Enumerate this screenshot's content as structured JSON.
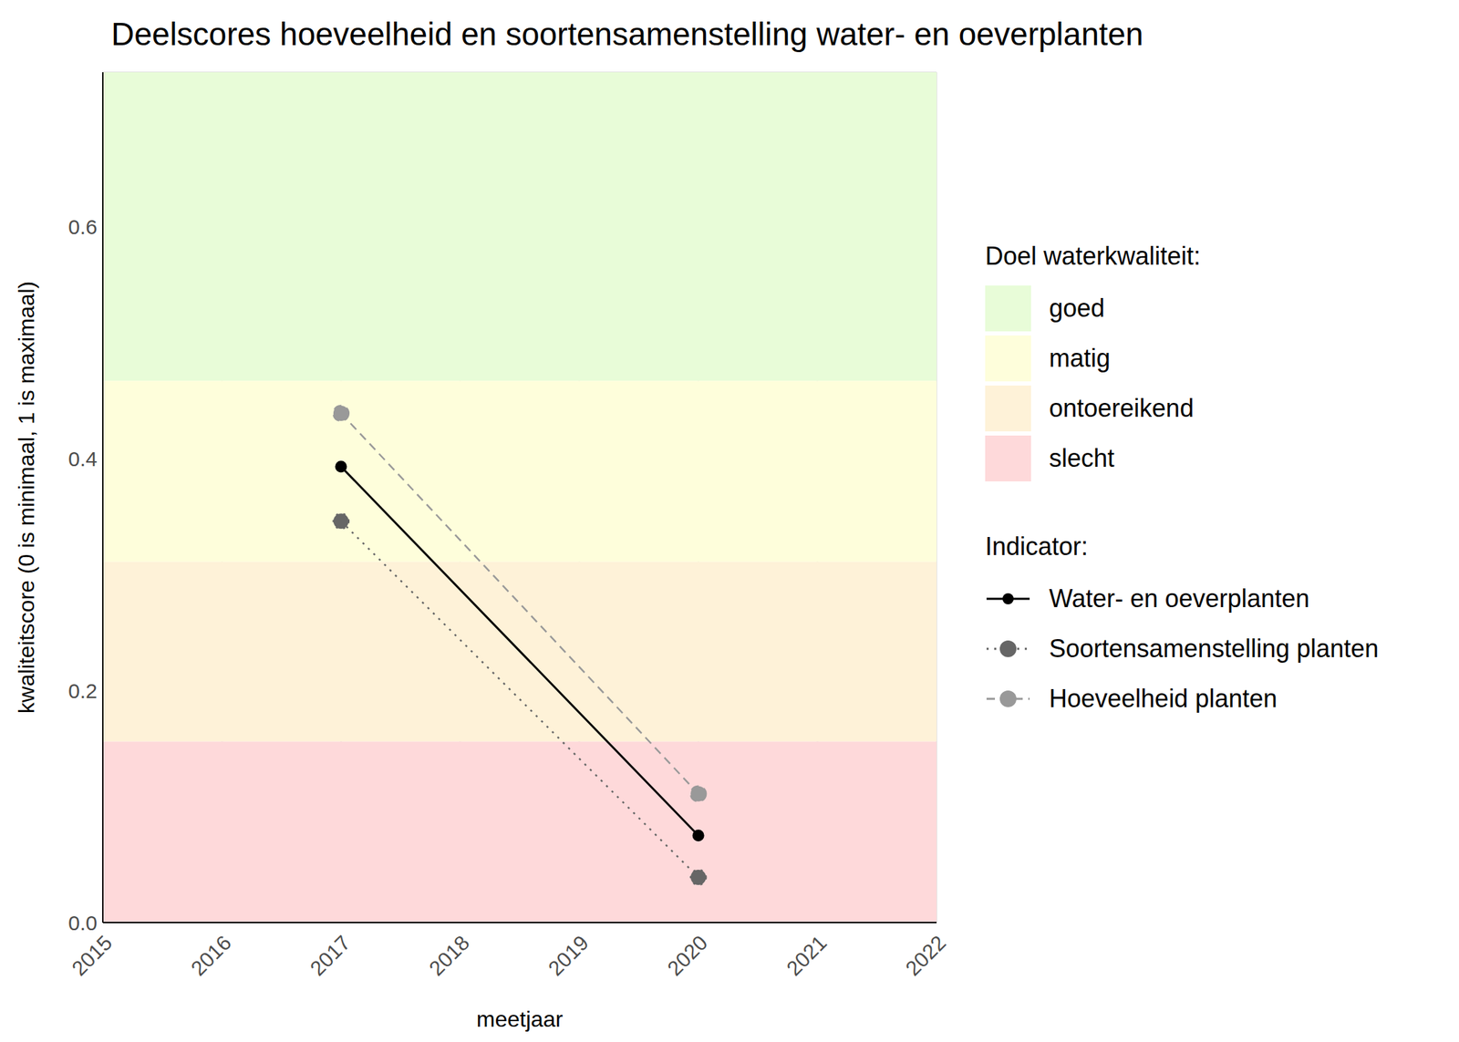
{
  "chart_data": {
    "type": "line",
    "title": "Deelscores hoeveelheid en soortensamenstelling water- en oeverplanten",
    "x_label": "meetjaar",
    "y_label": "kwaliteitscore (0 is minimaal, 1 is maximaal)",
    "x": [
      2017,
      2020
    ],
    "series": [
      {
        "name": "Water- en oeverplanten",
        "color": "#000000",
        "values": [
          0.393,
          0.075
        ],
        "line_style": "solid",
        "marker": "circle"
      },
      {
        "name": "Soortensamenstelling planten",
        "color": "#666666",
        "values": [
          0.346,
          0.039
        ],
        "line_style": "dotted",
        "marker": "circle"
      },
      {
        "name": "Hoeveelheid planten",
        "color": "#999999",
        "values": [
          0.439,
          0.111
        ],
        "line_style": "dashed",
        "marker": "circle"
      }
    ],
    "xlim": [
      2015,
      2022
    ],
    "xticks": [
      2015,
      2016,
      2017,
      2018,
      2019,
      2020,
      2021,
      2022
    ],
    "ylim": [
      0,
      0.733
    ],
    "yticks": [
      {
        "value": 0,
        "label": "0.0"
      },
      0.2,
      0.4,
      0.6
    ],
    "grid": true,
    "bands_title": "Doel waterkwaliteit:",
    "legend_title": "Indicator:",
    "bands": [
      {
        "name": "goed",
        "from": 0.467,
        "to": 0.733,
        "color": "#e8fcd8"
      },
      {
        "name": "matig",
        "from": 0.311,
        "to": 0.467,
        "color": "#fefedb"
      },
      {
        "name": "ontoereikend",
        "from": 0.156,
        "to": 0.311,
        "color": "#fef2d8"
      },
      {
        "name": "slecht",
        "from": 0,
        "to": 0.156,
        "color": "#fed9da"
      }
    ]
  }
}
